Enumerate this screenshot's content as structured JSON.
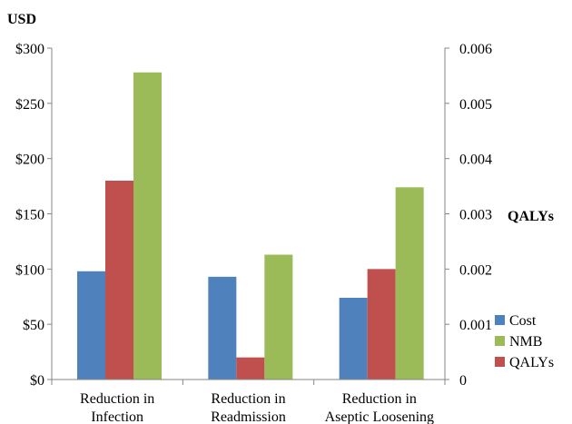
{
  "chart_data": {
    "type": "bar",
    "title": "",
    "y_left_label": "USD",
    "y_right_label": "QALYs",
    "categories": [
      [
        "Reduction in",
        "Infection"
      ],
      [
        "Reduction in",
        "Readmission"
      ],
      [
        "Reduction in",
        "Aseptic Loosening"
      ]
    ],
    "y_left_range": [
      0,
      300
    ],
    "y_left_ticks": [
      "$0",
      "$50",
      "$100",
      "$150",
      "$200",
      "$250",
      "$300"
    ],
    "y_right_range": [
      0,
      0.006
    ],
    "y_right_ticks": [
      "0",
      "0.001",
      "0.002",
      "0.003",
      "0.004",
      "0.005",
      "0.006"
    ],
    "series": [
      {
        "name": "Cost",
        "axis": "left",
        "color": "#4f81bd",
        "values": [
          98,
          93,
          74
        ]
      },
      {
        "name": "QALYs",
        "axis": "right",
        "color": "#c0504d",
        "values": [
          0.0036,
          0.0004,
          0.002
        ]
      },
      {
        "name": "NMB",
        "axis": "left",
        "color": "#9bbb59",
        "values": [
          278,
          113,
          174
        ]
      }
    ],
    "legend_order": [
      "Cost",
      "NMB",
      "QALYs"
    ],
    "legend_position": "right",
    "grid": false
  }
}
